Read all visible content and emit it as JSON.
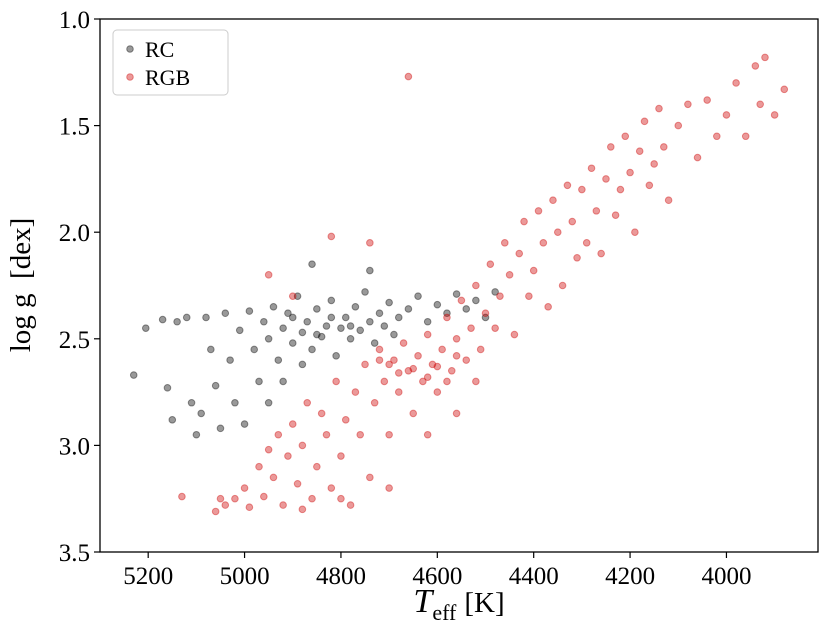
{
  "chart_data": {
    "type": "scatter",
    "x_label": {
      "symbol": "T",
      "subscript": "eff",
      "unit": "[K]"
    },
    "y_label": "log g  [dex]",
    "xlim": [
      5300,
      3810
    ],
    "xticks": [
      5200,
      5000,
      4800,
      4600,
      4400,
      4200,
      4000
    ],
    "ylim": [
      3.5,
      1.0
    ],
    "yticks": [
      {
        "value": 1.0,
        "label": "1.0"
      },
      1.5,
      {
        "value": 2.0,
        "label": "2.0"
      },
      2.5,
      {
        "value": 3.0,
        "label": "3.0"
      },
      3.5
    ],
    "legend": "upper left",
    "marker_alpha": 0.4,
    "series": [
      {
        "name": "RC",
        "color": "#000000",
        "x": [
          5230,
          5205,
          5170,
          5160,
          5150,
          5140,
          5120,
          5110,
          5100,
          5090,
          5080,
          5060,
          5050,
          5040,
          5030,
          5020,
          5010,
          5000,
          4990,
          4980,
          4970,
          4960,
          4950,
          4940,
          4930,
          4920,
          4910,
          4900,
          4890,
          4880,
          4870,
          4860,
          4850,
          4840,
          4830,
          4820,
          4810,
          4800,
          4790,
          4780,
          4770,
          4760,
          4750,
          4740,
          4730,
          4720,
          4710,
          4700,
          4690,
          4680,
          4660,
          4640,
          4620,
          4600,
          4580,
          4560,
          4540,
          4520,
          4500,
          4480,
          4860,
          4740,
          4880,
          4920,
          4950,
          5070,
          4900,
          4850,
          4820,
          4780
        ],
        "y": [
          2.67,
          2.45,
          2.41,
          2.73,
          2.88,
          2.42,
          2.4,
          2.8,
          2.95,
          2.85,
          2.4,
          2.72,
          2.92,
          2.38,
          2.6,
          2.8,
          2.46,
          2.9,
          2.37,
          2.55,
          2.7,
          2.42,
          2.5,
          2.35,
          2.6,
          2.45,
          2.38,
          2.52,
          2.3,
          2.47,
          2.42,
          2.55,
          2.36,
          2.49,
          2.44,
          2.32,
          2.58,
          2.45,
          2.4,
          2.5,
          2.35,
          2.46,
          2.28,
          2.42,
          2.52,
          2.38,
          2.44,
          2.33,
          2.48,
          2.4,
          2.36,
          2.3,
          2.42,
          2.34,
          2.38,
          2.29,
          2.36,
          2.32,
          2.4,
          2.28,
          2.15,
          2.18,
          2.62,
          2.7,
          2.8,
          2.55,
          2.4,
          2.48,
          2.4,
          2.44
        ]
      },
      {
        "name": "RGB",
        "color": "#cc0000",
        "x": [
          5060,
          5040,
          5020,
          5000,
          4990,
          4970,
          4960,
          4950,
          4940,
          4930,
          4920,
          4910,
          4900,
          4890,
          4880,
          4870,
          4860,
          4850,
          4840,
          4830,
          4820,
          4810,
          4800,
          4790,
          4780,
          4770,
          4760,
          4750,
          4740,
          4730,
          4720,
          4710,
          4700,
          4690,
          4680,
          4670,
          4660,
          4650,
          4640,
          4630,
          4620,
          4610,
          4600,
          4590,
          4580,
          4570,
          4560,
          4550,
          4540,
          4530,
          4520,
          4510,
          4500,
          4490,
          4480,
          4470,
          4460,
          4450,
          4440,
          4430,
          4420,
          4410,
          4400,
          4390,
          4380,
          4370,
          4360,
          4350,
          4340,
          4330,
          4320,
          4310,
          4300,
          4290,
          4280,
          4270,
          4260,
          4250,
          4240,
          4230,
          4220,
          4210,
          4200,
          4190,
          4180,
          4170,
          4160,
          4150,
          4140,
          4130,
          4120,
          4100,
          4080,
          4060,
          4040,
          4020,
          4000,
          3980,
          3960,
          3940,
          3930,
          3920,
          3880,
          3900,
          4700,
          4680,
          4650,
          4620,
          4600,
          4720,
          4580,
          4560,
          5130,
          5050,
          4660,
          4900,
          4950,
          4820,
          4740,
          4880,
          4800,
          4700,
          4620,
          4560,
          4520
        ],
        "y": [
          3.31,
          3.28,
          3.25,
          3.2,
          3.29,
          3.1,
          3.24,
          3.02,
          3.15,
          2.95,
          3.28,
          3.05,
          2.9,
          3.18,
          3.0,
          2.8,
          3.25,
          3.1,
          2.85,
          2.95,
          3.2,
          2.7,
          3.05,
          2.88,
          3.28,
          2.75,
          2.95,
          2.62,
          3.15,
          2.8,
          2.55,
          2.7,
          2.95,
          2.6,
          2.75,
          2.52,
          2.65,
          2.85,
          2.58,
          2.7,
          2.48,
          2.62,
          2.75,
          2.55,
          2.4,
          2.65,
          2.5,
          2.32,
          2.6,
          2.45,
          2.25,
          2.55,
          2.38,
          2.15,
          2.45,
          2.3,
          2.05,
          2.2,
          2.48,
          2.1,
          1.95,
          2.3,
          2.18,
          1.9,
          2.05,
          2.35,
          1.85,
          2.0,
          2.25,
          1.78,
          1.95,
          2.12,
          1.8,
          2.05,
          1.7,
          1.9,
          2.1,
          1.75,
          1.6,
          1.92,
          1.8,
          1.55,
          1.72,
          2.0,
          1.62,
          1.48,
          1.78,
          1.68,
          1.42,
          1.6,
          1.85,
          1.5,
          1.4,
          1.65,
          1.38,
          1.55,
          1.45,
          1.3,
          1.55,
          1.22,
          1.4,
          1.18,
          1.33,
          1.45,
          2.62,
          2.66,
          2.64,
          2.68,
          2.63,
          2.6,
          2.7,
          2.58,
          3.24,
          3.25,
          1.27,
          2.3,
          2.2,
          2.02,
          2.05,
          3.3,
          3.25,
          3.2,
          2.95,
          2.85,
          2.7
        ]
      }
    ]
  }
}
